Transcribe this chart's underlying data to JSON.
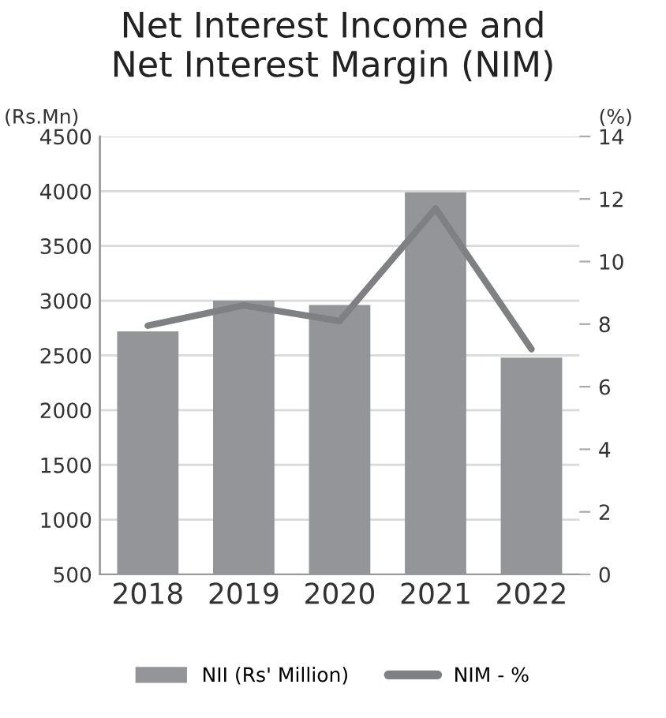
{
  "chart_data": {
    "type": "bar",
    "title": "Net Interest Income and\nNet Interest Margin (NIM)",
    "ylabel": "(Rs.Mn)",
    "y2label": "(%)",
    "categories": [
      "2018",
      "2019",
      "2020",
      "2021",
      "2022"
    ],
    "series": [
      {
        "name": "NII (Rs' Million)",
        "color": "#939598",
        "values": [
          2720,
          3000,
          2960,
          3990,
          2480
        ]
      },
      {
        "name": "NIM - %",
        "type": "line",
        "axis": "y2",
        "color": "#7f8083",
        "values": [
          7.95,
          8.6,
          8.1,
          11.7,
          7.2
        ]
      }
    ],
    "ylim": [
      500,
      4500
    ],
    "yticks": [
      500,
      1000,
      1500,
      2000,
      2500,
      3000,
      3500,
      4000,
      4500
    ],
    "y2lim": [
      0,
      14
    ],
    "y2ticks": [
      0,
      2,
      4,
      6,
      8,
      10,
      12,
      14
    ],
    "grid": "y",
    "legend": "bottom",
    "marker": "none"
  }
}
